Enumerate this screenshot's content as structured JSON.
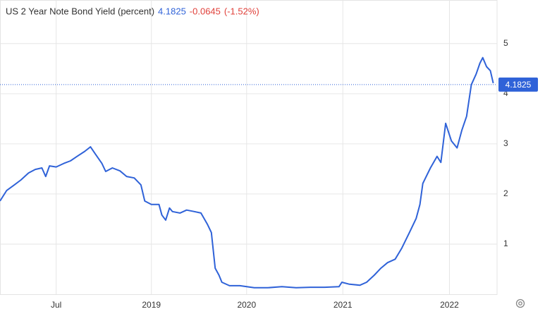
{
  "chart_data": {
    "type": "line",
    "title": "US 2 Year Note Bond Yield (percent)",
    "last_value": 4.1825,
    "change": -0.0645,
    "change_percent": {
      "value": -1.52,
      "label": "(-1.52%)"
    },
    "x": [
      2017.41,
      2017.48,
      2017.56,
      2017.63,
      2017.71,
      2017.78,
      2017.85,
      2017.89,
      2017.93,
      2018.0,
      2018.08,
      2018.15,
      2018.22,
      2018.3,
      2018.36,
      2018.41,
      2018.48,
      2018.52,
      2018.59,
      2018.67,
      2018.74,
      2018.82,
      2018.89,
      2018.93,
      2019.0,
      2019.08,
      2019.11,
      2019.15,
      2019.19,
      2019.22,
      2019.3,
      2019.37,
      2019.45,
      2019.52,
      2019.59,
      2019.63,
      2019.67,
      2019.71,
      2019.74,
      2019.82,
      2019.93,
      2020.08,
      2020.22,
      2020.37,
      2020.52,
      2020.67,
      2020.82,
      2020.97,
      2021.0,
      2021.08,
      2021.19,
      2021.26,
      2021.34,
      2021.41,
      2021.48,
      2021.56,
      2021.63,
      2021.71,
      2021.78,
      2021.82,
      2021.85,
      2021.93,
      2022.0,
      2022.04,
      2022.09,
      2022.15,
      2022.21,
      2022.26,
      2022.31,
      2022.36,
      2022.41,
      2022.45,
      2022.48,
      2022.52,
      2022.56,
      2022.59
    ],
    "series": [
      {
        "name": "US 2 Year Note Bond Yield",
        "color": "#2f62d8",
        "values": [
          1.86,
          2.07,
          2.18,
          2.28,
          2.42,
          2.49,
          2.52,
          2.35,
          2.56,
          2.54,
          2.61,
          2.66,
          2.75,
          2.85,
          2.94,
          2.8,
          2.61,
          2.45,
          2.52,
          2.46,
          2.35,
          2.32,
          2.18,
          1.86,
          1.79,
          1.79,
          1.58,
          1.48,
          1.72,
          1.65,
          1.62,
          1.68,
          1.65,
          1.62,
          1.39,
          1.23,
          0.52,
          0.38,
          0.24,
          0.17,
          0.17,
          0.13,
          0.13,
          0.15,
          0.13,
          0.14,
          0.14,
          0.15,
          0.24,
          0.2,
          0.18,
          0.24,
          0.38,
          0.52,
          0.63,
          0.7,
          0.92,
          1.23,
          1.51,
          1.79,
          2.21,
          2.52,
          2.75,
          2.63,
          3.41,
          3.06,
          2.92,
          3.27,
          3.55,
          4.18,
          4.39,
          4.61,
          4.72,
          4.54,
          4.46,
          4.21
        ]
      }
    ],
    "xlim": [
      2017.41,
      2022.63
    ],
    "xticks": [
      {
        "value": 2018.0,
        "label": "Jul"
      },
      {
        "value": 2019.0,
        "label": "2019"
      },
      {
        "value": 2020.0,
        "label": "2020"
      },
      {
        "value": 2021.01,
        "label": "2021"
      },
      {
        "value": 2022.13,
        "label": "2022"
      }
    ],
    "ylim": [
      0,
      5.87
    ],
    "yticks": [
      1,
      2,
      3,
      4,
      5
    ],
    "grid": true
  }
}
